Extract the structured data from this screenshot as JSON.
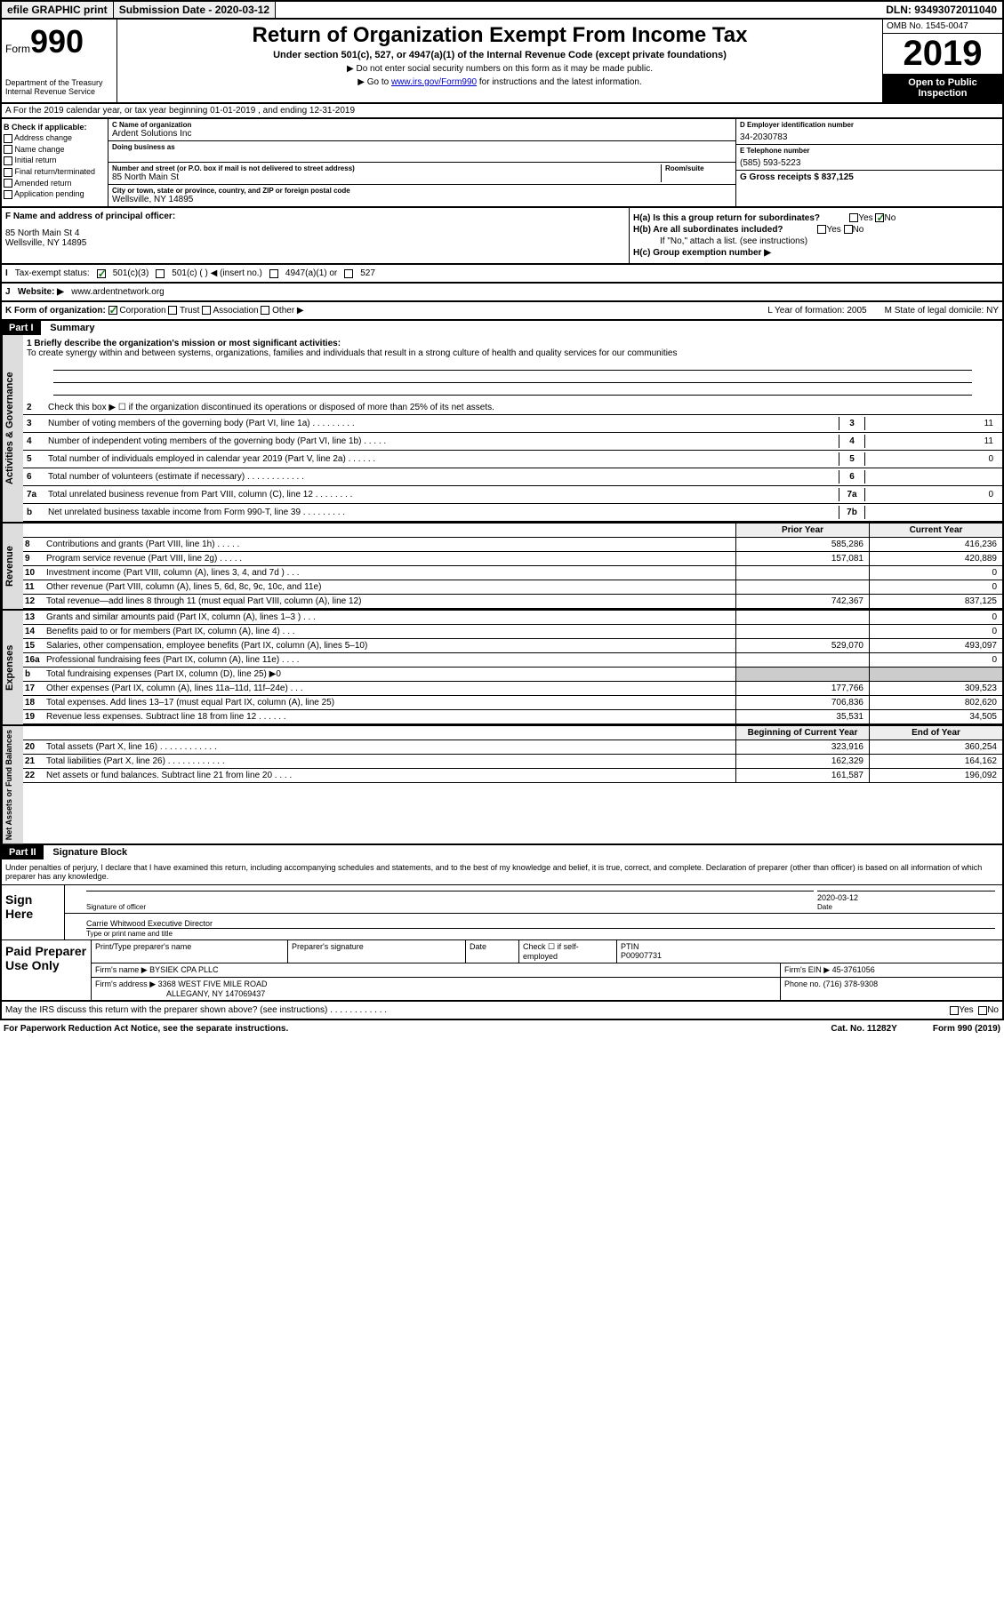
{
  "topbar": {
    "efile": "efile GRAPHIC print",
    "submission": "Submission Date - 2020-03-12",
    "dln": "DLN: 93493072011040"
  },
  "header": {
    "form_word": "Form",
    "form_num": "990",
    "title": "Return of Organization Exempt From Income Tax",
    "subtitle": "Under section 501(c), 527, or 4947(a)(1) of the Internal Revenue Code (except private foundations)",
    "note1": "▶ Do not enter social security numbers on this form as it may be made public.",
    "note2_pre": "▶ Go to ",
    "note2_link": "www.irs.gov/Form990",
    "note2_post": " for instructions and the latest information.",
    "dept": "Department of the Treasury\nInternal Revenue Service",
    "omb": "OMB No. 1545-0047",
    "year": "2019",
    "open": "Open to Public Inspection"
  },
  "sectionA": "A For the 2019 calendar year, or tax year beginning 01-01-2019    , and ending 12-31-2019",
  "colB": {
    "label": "B Check if applicable:",
    "items": [
      "Address change",
      "Name change",
      "Initial return",
      "Final return/terminated",
      "Amended return",
      "Application pending"
    ]
  },
  "colC": {
    "name_label": "C Name of organization",
    "name": "Ardent Solutions Inc",
    "dba_label": "Doing business as",
    "addr_label": "Number and street (or P.O. box if mail is not delivered to street address)",
    "room_label": "Room/suite",
    "addr": "85 North Main St",
    "city_label": "City or town, state or province, country, and ZIP or foreign postal code",
    "city": "Wellsville, NY  14895"
  },
  "colD": {
    "ein_label": "D Employer identification number",
    "ein": "34-2030783",
    "phone_label": "E Telephone number",
    "phone": "(585) 593-5223",
    "gross_label": "G Gross receipts $ 837,125"
  },
  "rowF": {
    "label": "F  Name and address of principal officer:",
    "addr": "85 North Main St 4\nWellsville, NY  14895"
  },
  "rowH": {
    "ha": "H(a)  Is this a group return for subordinates?",
    "hb": "H(b)  Are all subordinates included?",
    "hb_note": "If \"No,\" attach a list. (see instructions)",
    "hc": "H(c)  Group exemption number ▶",
    "yes": "Yes",
    "no": "No"
  },
  "rowI": {
    "label": "Tax-exempt status:",
    "opts": [
      "501(c)(3)",
      "501(c) (  ) ◀ (insert no.)",
      "4947(a)(1) or",
      "527"
    ]
  },
  "rowJ": {
    "label": "Website: ▶",
    "val": "www.ardentnetwork.org"
  },
  "rowK": {
    "label": "K Form of organization:",
    "opts": [
      "Corporation",
      "Trust",
      "Association",
      "Other ▶"
    ],
    "l": "L Year of formation: 2005",
    "m": "M State of legal domicile: NY"
  },
  "part1": {
    "hdr": "Part I",
    "title": "Summary",
    "line1_label": "1  Briefly describe the organization's mission or most significant activities:",
    "line1_text": "To create synergy within and between systems, organizations, families and individuals that result in a strong culture of health and quality services for our communities",
    "line2": "Check this box ▶ ☐  if the organization discontinued its operations or disposed of more than 25% of its net assets.",
    "lines_gov": [
      {
        "n": "3",
        "t": "Number of voting members of the governing body (Part VI, line 1a)  .    .    .    .    .    .    .    .    .",
        "box": "3",
        "v": "11"
      },
      {
        "n": "4",
        "t": "Number of independent voting members of the governing body (Part VI, line 1b)  .    .    .    .    .",
        "box": "4",
        "v": "11"
      },
      {
        "n": "5",
        "t": "Total number of individuals employed in calendar year 2019 (Part V, line 2a)  .    .    .    .    .    .",
        "box": "5",
        "v": "0"
      },
      {
        "n": "6",
        "t": "Total number of volunteers (estimate if necessary)    .    .    .    .    .    .    .    .    .    .    .    .",
        "box": "6",
        "v": ""
      },
      {
        "n": "7a",
        "t": "Total unrelated business revenue from Part VIII, column (C), line 12  .    .    .    .    .    .    .    .",
        "box": "7a",
        "v": "0"
      },
      {
        "n": "b",
        "t": "Net unrelated business taxable income from Form 990-T, line 39    .    .    .    .    .    .    .    .    .",
        "box": "7b",
        "v": ""
      }
    ],
    "prior": "Prior Year",
    "current": "Current Year",
    "revenue": [
      {
        "n": "8",
        "t": "Contributions and grants (Part VIII, line 1h)   .     .     .     .     .",
        "v1": "585,286",
        "v2": "416,236"
      },
      {
        "n": "9",
        "t": "Program service revenue (Part VIII, line 2g)   .     .     .     .     .",
        "v1": "157,081",
        "v2": "420,889"
      },
      {
        "n": "10",
        "t": "Investment income (Part VIII, column (A), lines 3, 4, and 7d )   .     .     .",
        "v1": "",
        "v2": "0"
      },
      {
        "n": "11",
        "t": "Other revenue (Part VIII, column (A), lines 5, 6d, 8c, 9c, 10c, and 11e)",
        "v1": "",
        "v2": "0"
      },
      {
        "n": "12",
        "t": "Total revenue—add lines 8 through 11 (must equal Part VIII, column (A), line 12)",
        "v1": "742,367",
        "v2": "837,125"
      }
    ],
    "expenses": [
      {
        "n": "13",
        "t": "Grants and similar amounts paid (Part IX, column (A), lines 1–3 )  .    .    .",
        "v1": "",
        "v2": "0"
      },
      {
        "n": "14",
        "t": "Benefits paid to or for members (Part IX, column (A), line 4)  .    .    .",
        "v1": "",
        "v2": "0"
      },
      {
        "n": "15",
        "t": "Salaries, other compensation, employee benefits (Part IX, column (A), lines 5–10)",
        "v1": "529,070",
        "v2": "493,097"
      },
      {
        "n": "16a",
        "t": "Professional fundraising fees (Part IX, column (A), line 11e)  .    .    .    .",
        "v1": "",
        "v2": "0"
      },
      {
        "n": "b",
        "t": "Total fundraising expenses (Part IX, column (D), line 25) ▶0",
        "v1": "",
        "v2": "",
        "shaded": true
      },
      {
        "n": "17",
        "t": "Other expenses (Part IX, column (A), lines 11a–11d, 11f–24e)   .     .     .",
        "v1": "177,766",
        "v2": "309,523"
      },
      {
        "n": "18",
        "t": "Total expenses. Add lines 13–17 (must equal Part IX, column (A), line 25)",
        "v1": "706,836",
        "v2": "802,620"
      },
      {
        "n": "19",
        "t": "Revenue less expenses. Subtract line 18 from line 12 .    .    .    .    .    .",
        "v1": "35,531",
        "v2": "34,505"
      }
    ],
    "begin": "Beginning of Current Year",
    "end": "End of Year",
    "netassets": [
      {
        "n": "20",
        "t": "Total assets (Part X, line 16)  .    .    .    .    .    .    .    .    .    .    .    .",
        "v1": "323,916",
        "v2": "360,254"
      },
      {
        "n": "21",
        "t": "Total liabilities (Part X, line 26)   .    .    .    .    .    .    .    .    .    .    .    .",
        "v1": "162,329",
        "v2": "164,162"
      },
      {
        "n": "22",
        "t": "Net assets or fund balances. Subtract line 21 from line 20  .    .    .    .",
        "v1": "161,587",
        "v2": "196,092"
      }
    ],
    "side_gov": "Activities & Governance",
    "side_rev": "Revenue",
    "side_exp": "Expenses",
    "side_net": "Net Assets or Fund Balances"
  },
  "part2": {
    "hdr": "Part II",
    "title": "Signature Block",
    "decl": "Under penalties of perjury, I declare that I have examined this return, including accompanying schedules and statements, and to the best of my knowledge and belief, it is true, correct, and complete. Declaration of preparer (other than officer) is based on all information of which preparer has any knowledge.",
    "sign_here": "Sign Here",
    "sig_officer": "Signature of officer",
    "sig_date": "2020-03-12",
    "date_lbl": "Date",
    "sig_name": "Carrie Whitwood  Executive Director",
    "sig_name_lbl": "Type or print name and title",
    "paid": "Paid Preparer Use Only",
    "prep_name_lbl": "Print/Type preparer's name",
    "prep_sig_lbl": "Preparer's signature",
    "prep_date_lbl": "Date",
    "prep_check": "Check ☐ if self-employed",
    "ptin_lbl": "PTIN",
    "ptin": "P00907731",
    "firm_name_lbl": "Firm's name    ▶",
    "firm_name": "BYSIEK CPA PLLC",
    "firm_ein_lbl": "Firm's EIN ▶",
    "firm_ein": "45-3761056",
    "firm_addr_lbl": "Firm's address ▶",
    "firm_addr": "3368 WEST FIVE MILE ROAD",
    "firm_city": "ALLEGANY, NY  147069437",
    "firm_phone_lbl": "Phone no.",
    "firm_phone": "(716) 378-9308",
    "discuss": "May the IRS discuss this return with the preparer shown above? (see instructions)   .    .    .    .    .    .    .    .    .    .    .    .",
    "yes": "Yes",
    "no": "No"
  },
  "footer": {
    "paperwork": "For Paperwork Reduction Act Notice, see the separate instructions.",
    "cat": "Cat. No. 11282Y",
    "form": "Form 990 (2019)"
  },
  "colors": {
    "border": "#000000",
    "bg": "#ffffff",
    "shaded": "#cccccc",
    "black_bg": "#000000",
    "link": "#0000cc",
    "check": "#1a7a1a"
  }
}
